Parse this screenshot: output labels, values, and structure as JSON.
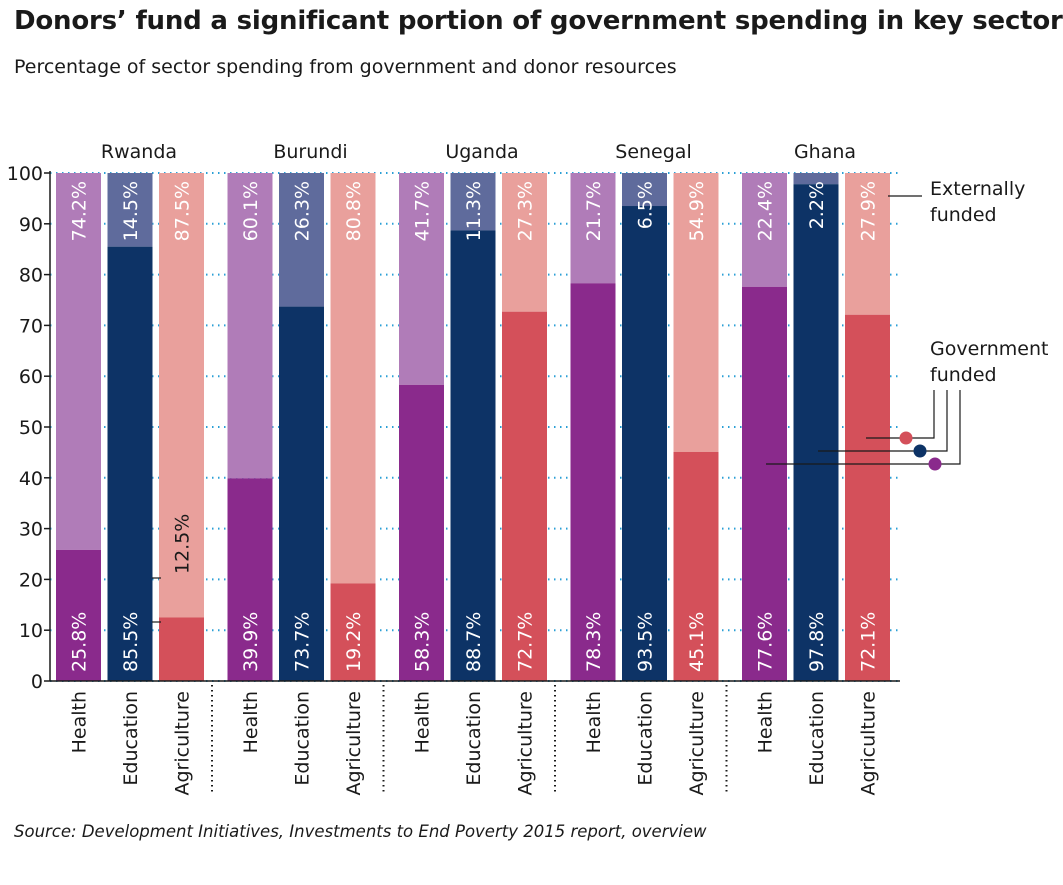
{
  "title": "Donors’ fund a significant portion of government spending in key sectors",
  "subtitle": "Percentage of sector spending from government and donor resources",
  "source": "Source: Development Initiatives, Investments to End Poverty 2015 report, overview",
  "legend": {
    "external": [
      "Externally",
      "funded"
    ],
    "government": [
      "Government",
      "funded"
    ]
  },
  "colors": {
    "health_gov": "#8a2a8c",
    "health_ext": "#b07cb8",
    "education_gov": "#0d3366",
    "education_ext": "#5f6b9c",
    "agriculture_gov": "#d4505a",
    "agriculture_ext": "#e9a09c",
    "dots": "#2a9fd6"
  },
  "chart_data": {
    "type": "bar",
    "stacked": true,
    "ylim": [
      0,
      100
    ],
    "yticks": [
      0,
      10,
      20,
      30,
      40,
      50,
      60,
      70,
      80,
      90,
      100
    ],
    "sector_labels": [
      "Health",
      "Education",
      "Agriculture"
    ],
    "countries": [
      {
        "name": "Rwanda",
        "government": [
          25.8,
          85.5,
          12.5
        ],
        "external": [
          74.2,
          14.5,
          87.5
        ],
        "gov_labels": [
          "25.8%",
          "85.5%",
          "12.5%"
        ],
        "ext_labels": [
          "74.2%",
          "14.5%",
          "87.5%"
        ]
      },
      {
        "name": "Burundi",
        "government": [
          39.9,
          73.7,
          19.2
        ],
        "external": [
          60.1,
          26.3,
          80.8
        ],
        "gov_labels": [
          "39.9%",
          "73.7%",
          "19.2%"
        ],
        "ext_labels": [
          "60.1%",
          "26.3%",
          "80.8%"
        ]
      },
      {
        "name": "Uganda",
        "government": [
          58.3,
          88.7,
          72.7
        ],
        "external": [
          41.7,
          11.3,
          27.3
        ],
        "gov_labels": [
          "58.3%",
          "88.7%",
          "72.7%"
        ],
        "ext_labels": [
          "41.7%",
          "11.3%",
          "27.3%"
        ]
      },
      {
        "name": "Senegal",
        "government": [
          78.3,
          93.5,
          45.1
        ],
        "external": [
          21.7,
          6.5,
          54.9
        ],
        "gov_labels": [
          "78.3%",
          "93.5%",
          "45.1%"
        ],
        "ext_labels": [
          "21.7%",
          "6.5%",
          "54.9%"
        ]
      },
      {
        "name": "Ghana",
        "government": [
          77.6,
          97.8,
          72.1
        ],
        "external": [
          22.4,
          2.2,
          27.9
        ],
        "gov_labels": [
          "77.6%",
          "97.8%",
          "72.1%"
        ],
        "ext_labels": [
          "22.4%",
          "2.2%",
          "27.9%"
        ]
      }
    ]
  }
}
